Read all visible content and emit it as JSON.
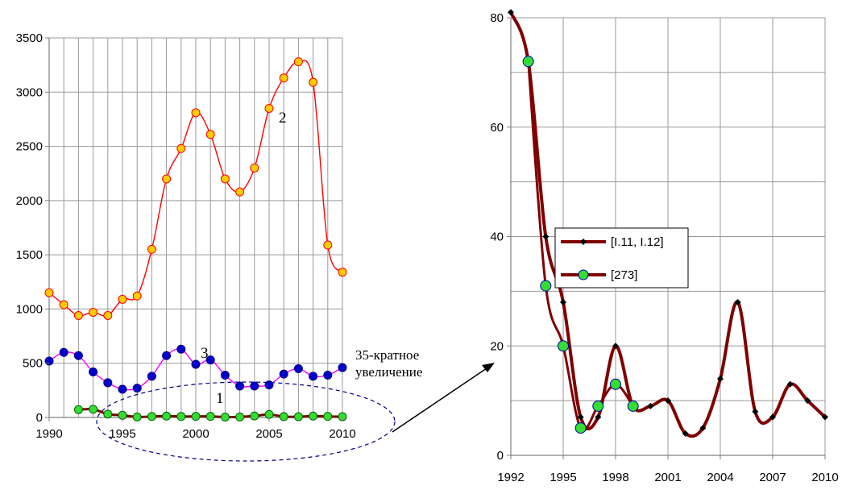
{
  "chart_data": [
    {
      "type": "line",
      "xlim": [
        1990,
        2010
      ],
      "ylim": [
        0,
        3500
      ],
      "x_ticks": [
        "1990",
        "1995",
        "2000",
        "2005",
        "2010"
      ],
      "y_ticks": [
        "0",
        "500",
        "1000",
        "1500",
        "2000",
        "2500",
        "3000",
        "3500"
      ],
      "grid": true,
      "series": [
        {
          "name": "2",
          "line_color": "#ff0000",
          "marker_fill": "#ffcc00",
          "marker_edge": "#ff0000",
          "x": [
            1990,
            1991,
            1992,
            1993,
            1994,
            1995,
            1996,
            1997,
            1998,
            1999,
            2000,
            2001,
            2002,
            2003,
            2004,
            2005,
            2006,
            2007,
            2008,
            2009,
            2010
          ],
          "y": [
            1150,
            1040,
            940,
            970,
            940,
            1090,
            1120,
            1550,
            2200,
            2480,
            2810,
            2610,
            2200,
            2080,
            2300,
            2850,
            3130,
            3280,
            3090,
            1590,
            1340
          ]
        },
        {
          "name": "3",
          "line_color": "#ff00ff",
          "marker_fill": "#0000cc",
          "marker_edge": "#000080",
          "x": [
            1990,
            1991,
            1992,
            1993,
            1994,
            1995,
            1996,
            1997,
            1998,
            1999,
            2000,
            2001,
            2002,
            2003,
            2004,
            2005,
            2006,
            2007,
            2008,
            2009,
            2010
          ],
          "y": [
            520,
            600,
            570,
            420,
            320,
            260,
            270,
            380,
            570,
            630,
            490,
            530,
            390,
            290,
            290,
            300,
            400,
            450,
            380,
            390,
            460
          ]
        },
        {
          "name": "1",
          "line_color": "#800000",
          "marker_fill": "#33dd33",
          "marker_edge": "#006600",
          "x": [
            1992,
            1993,
            1994,
            1995,
            1996,
            1997,
            1998,
            1999,
            2000,
            2001,
            2002,
            2003,
            2004,
            2005,
            2006,
            2007,
            2008,
            2009,
            2010
          ],
          "y": [
            72,
            75,
            31,
            20,
            5,
            9,
            13,
            9,
            10,
            10,
            4,
            5,
            14,
            28,
            8,
            7,
            13,
            10,
            7
          ]
        }
      ],
      "annotations": [
        "2",
        "3",
        "1"
      ]
    },
    {
      "type": "line",
      "xlim": [
        1992,
        2010
      ],
      "ylim": [
        0,
        80
      ],
      "x_ticks": [
        "1992",
        "1995",
        "1998",
        "2001",
        "2004",
        "2007",
        "2010"
      ],
      "y_ticks": [
        "0",
        "20",
        "40",
        "60",
        "80"
      ],
      "grid": true,
      "legend": "center-left",
      "series": [
        {
          "name": "[I.11, I.12]",
          "line_color": "#800000",
          "marker_fill": "#000000",
          "x": [
            1992,
            1993,
            1994,
            1995,
            1996,
            1997,
            1998,
            1999,
            2000,
            2001,
            2002,
            2003,
            2004,
            2005,
            2006,
            2007,
            2008,
            2009,
            2010
          ],
          "y": [
            81,
            72,
            40,
            28,
            7,
            7,
            20,
            9,
            9,
            10,
            4,
            5,
            14,
            28,
            8,
            7,
            13,
            10,
            7
          ]
        },
        {
          "name": "[273]",
          "line_color": "#800000",
          "marker_fill": "#33dd33",
          "marker_edge": "#0000aa",
          "x": [
            1993,
            1994,
            1995,
            1996,
            1997,
            1998,
            1999
          ],
          "y": [
            72,
            31,
            20,
            5,
            9,
            13,
            9
          ]
        }
      ]
    }
  ],
  "annotation_zoom_line1": "35-кратное",
  "annotation_zoom_line2": "увеличение"
}
